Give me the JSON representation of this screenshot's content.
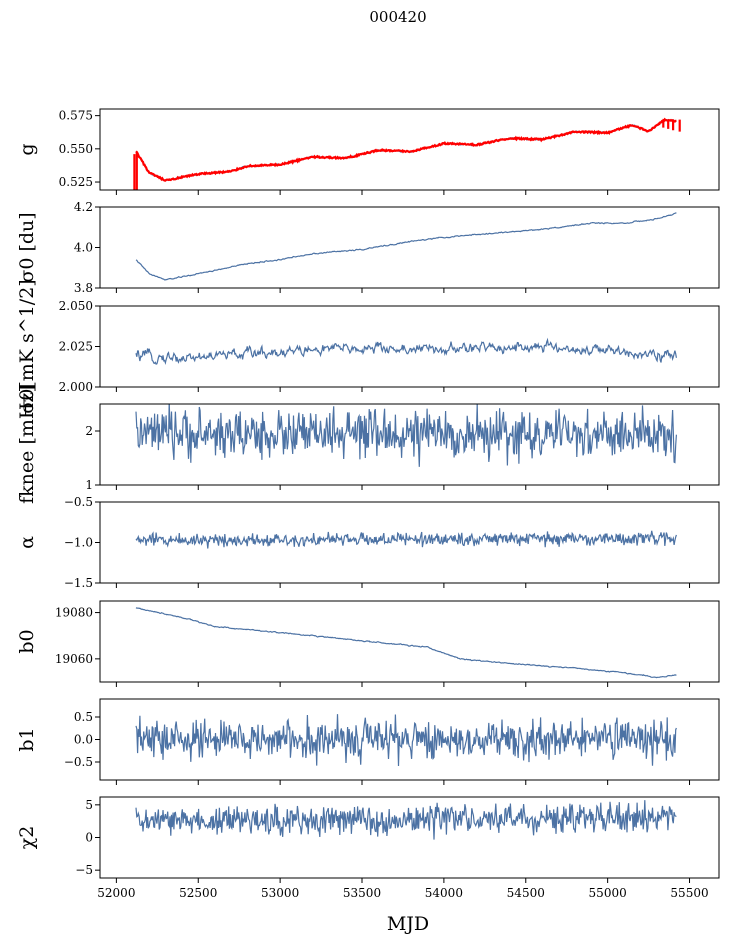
{
  "figure": {
    "title": "000420",
    "xlabel": "MJD",
    "colors": {
      "series": "#4c72a4",
      "overlay": "#ff0000",
      "frame": "#000000"
    }
  },
  "chart_data": {
    "type": "line",
    "x_axis": {
      "label": "MJD",
      "range": [
        51900,
        55680
      ],
      "ticks": [
        52000,
        52500,
        53000,
        53500,
        54000,
        54500,
        55000,
        55500
      ],
      "tick_labels": [
        "52000",
        "52500",
        "53000",
        "53500",
        "54000",
        "54500",
        "55000",
        "55500"
      ],
      "data_range": [
        52120,
        55420
      ]
    },
    "panels": [
      {
        "id": "g",
        "ylabel": "g",
        "ylim": [
          0.519,
          0.58
        ],
        "yticks": [
          0.525,
          0.55,
          0.575
        ],
        "ytick_labels": [
          "0.525",
          "0.550",
          "0.575"
        ],
        "trend": [
          [
            52120,
            0.548
          ],
          [
            52200,
            0.532
          ],
          [
            52300,
            0.526
          ],
          [
            52500,
            0.531
          ],
          [
            52700,
            0.533
          ],
          [
            52800,
            0.537
          ],
          [
            53000,
            0.538
          ],
          [
            53200,
            0.544
          ],
          [
            53400,
            0.543
          ],
          [
            53600,
            0.549
          ],
          [
            53800,
            0.548
          ],
          [
            54000,
            0.554
          ],
          [
            54200,
            0.553
          ],
          [
            54400,
            0.558
          ],
          [
            54600,
            0.557
          ],
          [
            54800,
            0.563
          ],
          [
            55000,
            0.562
          ],
          [
            55150,
            0.568
          ],
          [
            55250,
            0.563
          ],
          [
            55350,
            0.572
          ],
          [
            55420,
            0.571
          ]
        ],
        "noise": 0.0006,
        "overlay": true
      },
      {
        "id": "sigma0-du",
        "ylabel": "σ0 [du]",
        "ylim": [
          3.8,
          4.2
        ],
        "yticks": [
          3.8,
          4.0,
          4.2
        ],
        "ytick_labels": [
          "3.8",
          "4.0",
          "4.2"
        ],
        "trend": [
          [
            52120,
            3.94
          ],
          [
            52200,
            3.87
          ],
          [
            52300,
            3.84
          ],
          [
            52500,
            3.87
          ],
          [
            52800,
            3.92
          ],
          [
            53000,
            3.94
          ],
          [
            53200,
            3.97
          ],
          [
            53500,
            3.99
          ],
          [
            53800,
            4.03
          ],
          [
            54000,
            4.05
          ],
          [
            54300,
            4.07
          ],
          [
            54600,
            4.09
          ],
          [
            54900,
            4.12
          ],
          [
            55100,
            4.12
          ],
          [
            55300,
            4.14
          ],
          [
            55420,
            4.17
          ]
        ],
        "noise": 0.003
      },
      {
        "id": "sigma0-mk",
        "ylabel": "σ0[mK s^1/2]",
        "ylim": [
          2.0,
          2.05
        ],
        "yticks": [
          2.0,
          2.025,
          2.05
        ],
        "ytick_labels": [
          "2.000",
          "2.025",
          "2.050"
        ],
        "trend": [
          [
            52120,
            2.019
          ],
          [
            52400,
            2.018
          ],
          [
            52700,
            2.02
          ],
          [
            53000,
            2.022
          ],
          [
            53500,
            2.024
          ],
          [
            54000,
            2.023
          ],
          [
            54400,
            2.025
          ],
          [
            54700,
            2.024
          ],
          [
            55000,
            2.022
          ],
          [
            55300,
            2.021
          ],
          [
            55420,
            2.018
          ]
        ],
        "noise": 0.0035
      },
      {
        "id": "fknee",
        "ylabel": "fknee [mHz]",
        "ylim": [
          1.0,
          2.5
        ],
        "yticks": [
          1,
          2
        ],
        "ytick_labels": [
          "1",
          "2"
        ],
        "trend": [
          [
            52120,
            1.95
          ],
          [
            55420,
            1.92
          ]
        ],
        "noise": 0.22
      },
      {
        "id": "alpha",
        "ylabel": "α",
        "ylim": [
          -1.5,
          -0.5
        ],
        "yticks": [
          -1.5,
          -1.0,
          -0.5
        ],
        "ytick_labels": [
          "−1.5",
          "−1.0",
          "−0.5"
        ],
        "trend": [
          [
            52120,
            -0.97
          ],
          [
            55420,
            -0.95
          ]
        ],
        "noise": 0.04
      },
      {
        "id": "b0",
        "ylabel": "b0",
        "ylim": [
          19050,
          19085
        ],
        "yticks": [
          19060,
          19080
        ],
        "ytick_labels": [
          "19060",
          "19080"
        ],
        "trend": [
          [
            52120,
            19082
          ],
          [
            52400,
            19078
          ],
          [
            52600,
            19074
          ],
          [
            52900,
            19072
          ],
          [
            53200,
            19070
          ],
          [
            53600,
            19067
          ],
          [
            53900,
            19065
          ],
          [
            54100,
            19060
          ],
          [
            54400,
            19058
          ],
          [
            54800,
            19056
          ],
          [
            55100,
            19054
          ],
          [
            55300,
            19052
          ],
          [
            55420,
            19053
          ]
        ],
        "noise": 0.25
      },
      {
        "id": "b1",
        "ylabel": "b1",
        "ylim": [
          -0.9,
          0.9
        ],
        "yticks": [
          -0.5,
          0.0,
          0.5
        ],
        "ytick_labels": [
          "−0.5",
          "0.0",
          "0.5"
        ],
        "trend": [
          [
            52120,
            0.0
          ],
          [
            55420,
            0.0
          ]
        ],
        "noise": 0.22
      },
      {
        "id": "chi2",
        "ylabel": "χ2",
        "ylim": [
          -6.2,
          6.2
        ],
        "yticks": [
          -5,
          0,
          5
        ],
        "ytick_labels": [
          "−5",
          "0",
          "5"
        ],
        "trend": [
          [
            52120,
            2.5
          ],
          [
            55420,
            3.0
          ]
        ],
        "noise": 1.1
      }
    ]
  }
}
